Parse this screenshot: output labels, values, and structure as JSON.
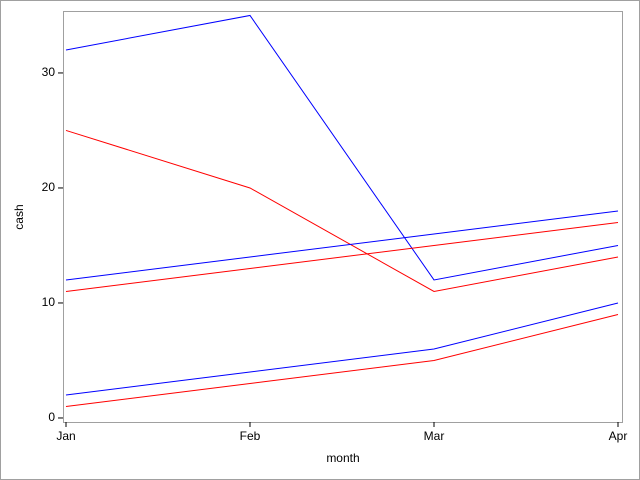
{
  "chart_data": {
    "type": "line",
    "x_label": "month",
    "y_label": "cash",
    "categories": [
      "Jan",
      "Feb",
      "Mar",
      "Apr"
    ],
    "series": [
      {
        "color": "#0000ff",
        "values": [
          32,
          35,
          12,
          15
        ]
      },
      {
        "color": "#ff0000",
        "values": [
          25,
          20,
          11,
          14
        ]
      },
      {
        "color": "#0000ff",
        "values": [
          12,
          14,
          16,
          18
        ]
      },
      {
        "color": "#ff0000",
        "values": [
          11,
          13,
          15,
          17
        ]
      },
      {
        "color": "#0000ff",
        "values": [
          2,
          4,
          6,
          10
        ]
      },
      {
        "color": "#ff0000",
        "values": [
          1,
          3,
          5,
          9
        ]
      }
    ],
    "ylim": [
      -0.35,
      35.3
    ],
    "yticks": [
      0,
      10,
      20,
      30
    ],
    "grid": false
  }
}
